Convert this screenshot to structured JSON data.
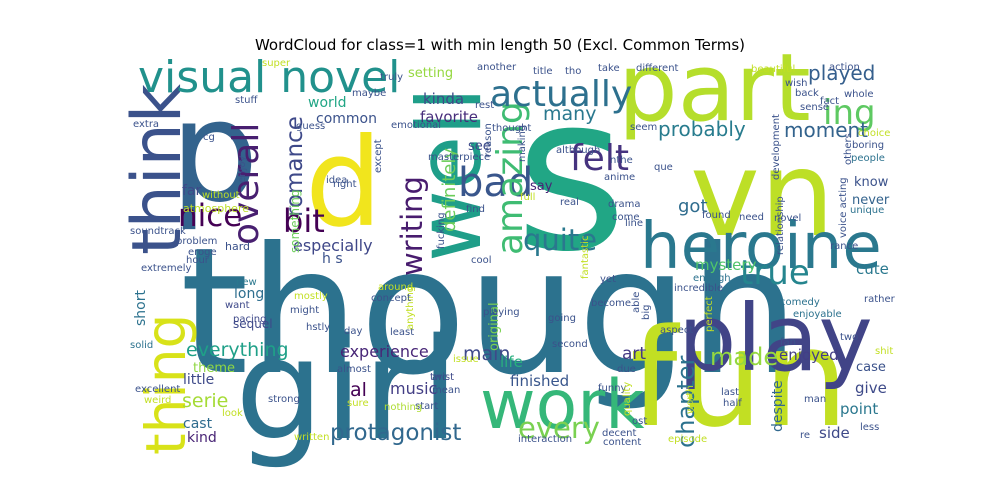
{
  "chart_data": {
    "type": "wordcloud",
    "title": "WordCloud for class=1 with min length 50 (Excl. Common Terms)",
    "words": [
      {
        "text": "though",
        "size": 1.0,
        "color": "#2c728e"
      },
      {
        "text": "s",
        "size": 0.98,
        "color": "#21a685"
      },
      {
        "text": "girl",
        "size": 0.78,
        "color": "#2c728e"
      },
      {
        "text": "fun",
        "size": 0.78,
        "color": "#c2df23"
      },
      {
        "text": "p",
        "size": 0.75,
        "color": "#33638d"
      },
      {
        "text": "d",
        "size": 0.68,
        "color": "#f1e51d"
      },
      {
        "text": "vn",
        "size": 0.66,
        "color": "#bddf26"
      },
      {
        "text": "part",
        "size": 0.52,
        "color": "#b5de2b"
      },
      {
        "text": "play",
        "size": 0.52,
        "color": "#414487"
      },
      {
        "text": "well",
        "size": 0.5,
        "color": "#1f9e89"
      },
      {
        "text": "think",
        "size": 0.4,
        "color": "#3b528b"
      },
      {
        "text": "work",
        "size": 0.4,
        "color": "#35b779"
      },
      {
        "text": "heroine",
        "size": 0.36,
        "color": "#2a788e"
      },
      {
        "text": "thing",
        "size": 0.32,
        "color": "#d8e219"
      },
      {
        "text": "visual novel",
        "size": 0.26,
        "color": "#21918c"
      },
      {
        "text": "bad",
        "size": 0.24,
        "color": "#39568c"
      },
      {
        "text": "amazing",
        "size": 0.21,
        "color": "#3fbc73"
      },
      {
        "text": "overall",
        "size": 0.21,
        "color": "#481f70"
      },
      {
        "text": "felt",
        "size": 0.2,
        "color": "#46337f"
      },
      {
        "text": "actually",
        "size": 0.2,
        "color": "#2d708e"
      },
      {
        "text": "true",
        "size": 0.2,
        "color": "#25858e"
      },
      {
        "text": "ing",
        "size": 0.2,
        "color": "#5ec962"
      },
      {
        "text": "nice",
        "size": 0.18,
        "color": "#440154"
      },
      {
        "text": "bit",
        "size": 0.19,
        "color": "#440154"
      },
      {
        "text": "quite",
        "size": 0.17,
        "color": "#2a788e"
      },
      {
        "text": "writing",
        "size": 0.17,
        "color": "#481c6e"
      },
      {
        "text": "every",
        "size": 0.17,
        "color": "#7ad151"
      },
      {
        "text": "protagonist",
        "size": 0.14,
        "color": "#31688e"
      },
      {
        "text": "romance",
        "size": 0.14,
        "color": "#3e4989"
      },
      {
        "text": "made",
        "size": 0.14,
        "color": "#95d840"
      },
      {
        "text": "chapter",
        "size": 0.14,
        "color": "#2c728e"
      },
      {
        "text": "played",
        "size": 0.12,
        "color": "#355f8d"
      },
      {
        "text": "probably",
        "size": 0.12,
        "color": "#287c8e"
      },
      {
        "text": "moment",
        "size": 0.12,
        "color": "#33638d"
      },
      {
        "text": "al",
        "size": 0.12,
        "color": "#440154"
      },
      {
        "text": "definitely",
        "size": 0.11,
        "color": "#6ccd5a"
      },
      {
        "text": "got",
        "size": 0.11,
        "color": "#2f6c8e"
      },
      {
        "text": "serie",
        "size": 0.11,
        "color": "#a5db36"
      },
      {
        "text": "everything",
        "size": 0.11,
        "color": "#1fa088"
      },
      {
        "text": "experience",
        "size": 0.1,
        "color": "#482677"
      },
      {
        "text": "main",
        "size": 0.1,
        "color": "#3e4989"
      },
      {
        "text": "especially",
        "size": 0.1,
        "color": "#3f4788"
      },
      {
        "text": "many",
        "size": 0.1,
        "color": "#2a788e"
      },
      {
        "text": "kinda",
        "size": 0.09,
        "color": "#3e4989"
      },
      {
        "text": "finished",
        "size": 0.09,
        "color": "#39568c"
      },
      {
        "text": "music",
        "size": 0.09,
        "color": "#433e85"
      },
      {
        "text": "enjoyed",
        "size": 0.09,
        "color": "#433e85"
      },
      {
        "text": "mystery",
        "size": 0.09,
        "color": "#50c46a"
      },
      {
        "text": "cute",
        "size": 0.09,
        "color": "#2a788e"
      },
      {
        "text": "world",
        "size": 0.09,
        "color": "#21a685"
      },
      {
        "text": "common",
        "size": 0.09,
        "color": "#3b528b"
      },
      {
        "text": "favorite",
        "size": 0.09,
        "color": "#472d7b"
      },
      {
        "text": "setting",
        "size": 0.09,
        "color": "#95d840"
      },
      {
        "text": "art",
        "size": 0.09,
        "color": "#443983"
      },
      {
        "text": "give",
        "size": 0.09,
        "color": "#3e4a89"
      },
      {
        "text": "point",
        "size": 0.09,
        "color": "#2a778e"
      },
      {
        "text": "side",
        "size": 0.09,
        "color": "#3e4989"
      },
      {
        "text": "kind",
        "size": 0.09,
        "color": "#482475"
      },
      {
        "text": "cast",
        "size": 0.09,
        "color": "#2f6c8e"
      },
      {
        "text": "long",
        "size": 0.09,
        "color": "#2e6e8e"
      },
      {
        "text": "life",
        "size": 0.08,
        "color": "#29af7f"
      },
      {
        "text": "little",
        "size": 0.08,
        "color": "#3e4a89"
      },
      {
        "text": "theme",
        "size": 0.08,
        "color": "#8fd744"
      },
      {
        "text": "short",
        "size": 0.08,
        "color": "#2c728e"
      },
      {
        "text": "sequel",
        "size": 0.07,
        "color": "#3e4989"
      },
      {
        "text": "despite",
        "size": 0.08,
        "color": "#31688e"
      },
      {
        "text": "case",
        "size": 0.08,
        "color": "#3b528b"
      },
      {
        "text": "know",
        "size": 0.08,
        "color": "#3b528b"
      },
      {
        "text": "never",
        "size": 0.08,
        "color": "#33638d"
      },
      {
        "text": "say",
        "size": 0.08,
        "color": "#482475"
      },
      {
        "text": "see",
        "size": 0.07,
        "color": "#3e4989"
      },
      {
        "text": "far",
        "size": 0.07,
        "color": "#3e4989"
      },
      {
        "text": "original",
        "size": 0.07,
        "color": "#7ad151"
      },
      {
        "text": "something",
        "size": 0.06,
        "color": "#6ccd5a"
      },
      {
        "text": "atmosphere",
        "size": 0.05,
        "color": "#bddf26"
      },
      {
        "text": "without",
        "size": 0.05,
        "color": "#bddf26"
      },
      {
        "text": "hard",
        "size": 0.05,
        "color": "#3b528b"
      },
      {
        "text": "new",
        "size": 0.05,
        "color": "#2a788e"
      },
      {
        "text": "want",
        "size": 0.05,
        "color": "#3e4989"
      },
      {
        "text": "pacing",
        "size": 0.05,
        "color": "#3e4989"
      },
      {
        "text": "solid",
        "size": 0.05,
        "color": "#2c728e"
      },
      {
        "text": "excellent",
        "size": 0.05,
        "color": "#3b528b"
      },
      {
        "text": "strong",
        "size": 0.05,
        "color": "#3b528b"
      },
      {
        "text": "might",
        "size": 0.05,
        "color": "#3b528b"
      },
      {
        "text": "day",
        "size": 0.05,
        "color": "#3b528b"
      },
      {
        "text": "least",
        "size": 0.05,
        "color": "#3b528b"
      },
      {
        "text": "start",
        "size": 0.05,
        "color": "#3b528b"
      },
      {
        "text": "nothing",
        "size": 0.05,
        "color": "#addc30"
      },
      {
        "text": "twist",
        "size": 0.05,
        "color": "#3e4989"
      },
      {
        "text": "going",
        "size": 0.05,
        "color": "#3b528b"
      },
      {
        "text": "funny",
        "size": 0.05,
        "color": "#3b528b"
      },
      {
        "text": "enough",
        "size": 0.05,
        "color": "#2c728e"
      },
      {
        "text": "comedy",
        "size": 0.05,
        "color": "#2c728e"
      },
      {
        "text": "enjoyable",
        "size": 0.05,
        "color": "#2c728e"
      },
      {
        "text": "fan",
        "size": 0.05,
        "color": "#3b528b"
      },
      {
        "text": "last",
        "size": 0.05,
        "color": "#3b528b"
      },
      {
        "text": "half",
        "size": 0.05,
        "color": "#3b528b"
      },
      {
        "text": "two",
        "size": 0.05,
        "color": "#3b528b"
      },
      {
        "text": "less",
        "size": 0.05,
        "color": "#3b528b"
      },
      {
        "text": "re",
        "size": 0.05,
        "color": "#3b528b"
      },
      {
        "text": "decent",
        "size": 0.05,
        "color": "#3b528b"
      },
      {
        "text": "ost",
        "size": 0.05,
        "color": "#3b528b"
      },
      {
        "text": "real",
        "size": 0.05,
        "color": "#3b528b"
      },
      {
        "text": "drama",
        "size": 0.05,
        "color": "#3b528b"
      },
      {
        "text": "come",
        "size": 0.05,
        "color": "#3b528b"
      },
      {
        "text": "yet",
        "size": 0.05,
        "color": "#3b528b"
      },
      {
        "text": "cool",
        "size": 0.05,
        "color": "#3b528b"
      },
      {
        "text": "find",
        "size": 0.05,
        "color": "#3b528b"
      },
      {
        "text": "playing",
        "size": 0.05,
        "color": "#3b528b"
      },
      {
        "text": "stuff",
        "size": 0.05,
        "color": "#3b528b"
      },
      {
        "text": "take",
        "size": 0.05,
        "color": "#3b528b"
      },
      {
        "text": "different",
        "size": 0.05,
        "color": "#3b528b"
      },
      {
        "text": "back",
        "size": 0.05,
        "color": "#3b528b"
      },
      {
        "text": "whole",
        "size": 0.05,
        "color": "#3b528b"
      },
      {
        "text": "people",
        "size": 0.05,
        "color": "#2c728e"
      },
      {
        "text": "unique",
        "size": 0.05,
        "color": "#2c728e"
      },
      {
        "text": "boring",
        "size": 0.05,
        "color": "#3b528b"
      },
      {
        "text": "hour",
        "size": 0.05,
        "color": "#3b528b"
      },
      {
        "text": "need",
        "size": 0.05,
        "color": "#3b528b"
      },
      {
        "text": "novel",
        "size": 0.05,
        "color": "#3b528b"
      },
      {
        "text": "although",
        "size": 0.05,
        "color": "#3b528b"
      },
      {
        "text": "idea",
        "size": 0.05,
        "color": "#3b528b"
      },
      {
        "text": "hstly",
        "size": 0.05,
        "color": "#3b528b"
      },
      {
        "text": "another",
        "size": 0.05,
        "color": "#3b528b"
      },
      {
        "text": "maybe",
        "size": 0.05,
        "color": "#3b528b"
      },
      {
        "text": "truly",
        "size": 0.05,
        "color": "#3b528b"
      },
      {
        "text": "title",
        "size": 0.05,
        "color": "#3b528b"
      },
      {
        "text": "thought",
        "size": 0.05,
        "color": "#3b528b"
      },
      {
        "text": "anime",
        "size": 0.05,
        "color": "#3b528b"
      },
      {
        "text": "wish",
        "size": 0.05,
        "color": "#3b528b"
      },
      {
        "text": "beautiful",
        "size": 0.05,
        "color": "#c2df23"
      },
      {
        "text": "action",
        "size": 0.05,
        "color": "#3b528b"
      },
      {
        "text": "seem",
        "size": 0.05,
        "color": "#3b528b"
      },
      {
        "text": "nthe",
        "size": 0.05,
        "color": "#3b528b"
      },
      {
        "text": "emotional",
        "size": 0.05,
        "color": "#3b528b"
      },
      {
        "text": "rest",
        "size": 0.05,
        "color": "#3b528b"
      },
      {
        "text": "masterpiece",
        "size": 0.05,
        "color": "#3b528b"
      },
      {
        "text": "guess",
        "size": 0.05,
        "color": "#3b528b"
      },
      {
        "text": "except",
        "size": 0.05,
        "color": "#3b528b"
      },
      {
        "text": "making",
        "size": 0.05,
        "color": "#3b528b"
      },
      {
        "text": "fantastic",
        "size": 0.05,
        "color": "#c2df23"
      },
      {
        "text": "mostly",
        "size": 0.05,
        "color": "#c2df23"
      },
      {
        "text": "anything",
        "size": 0.05,
        "color": "#c2df23"
      },
      {
        "text": "fucking",
        "size": 0.05,
        "color": "#3b528b"
      },
      {
        "text": "second",
        "size": 0.05,
        "color": "#3b528b"
      },
      {
        "text": "issue",
        "size": 0.05,
        "color": "#c2df23"
      },
      {
        "text": "almost",
        "size": 0.05,
        "color": "#3b528b"
      },
      {
        "text": "arc",
        "size": 0.05,
        "color": "#3b528b"
      },
      {
        "text": "sure",
        "size": 0.05,
        "color": "#c2df23"
      },
      {
        "text": "mean",
        "size": 0.05,
        "color": "#3b528b"
      },
      {
        "text": "interaction",
        "size": 0.05,
        "color": "#3b528b"
      },
      {
        "text": "content",
        "size": 0.05,
        "color": "#3b528b"
      },
      {
        "text": "episode",
        "size": 0.05,
        "color": "#c2df23"
      },
      {
        "text": "written",
        "size": 0.05,
        "color": "#c2df23"
      },
      {
        "text": "weird",
        "size": 0.05,
        "color": "#c2df23"
      },
      {
        "text": "look",
        "size": 0.05,
        "color": "#c2df23"
      },
      {
        "text": "aspect",
        "size": 0.05,
        "color": "#3b528b"
      },
      {
        "text": "man",
        "size": 0.05,
        "color": "#3b528b"
      },
      {
        "text": "shit",
        "size": 0.05,
        "color": "#c2df23"
      },
      {
        "text": "rather",
        "size": 0.05,
        "color": "#3b528b"
      },
      {
        "text": "rance",
        "size": 0.05,
        "color": "#3b528b"
      },
      {
        "text": "incredible",
        "size": 0.05,
        "color": "#3b528b"
      },
      {
        "text": "perfect",
        "size": 0.05,
        "color": "#c2df23"
      },
      {
        "text": "relationship",
        "size": 0.05,
        "color": "#3b528b"
      },
      {
        "text": "development",
        "size": 0.05,
        "color": "#3b528b"
      },
      {
        "text": "voice acting",
        "size": 0.05,
        "color": "#3b528b"
      },
      {
        "text": "others",
        "size": 0.05,
        "color": "#3b528b"
      },
      {
        "text": "choice",
        "size": 0.05,
        "color": "#c2df23"
      },
      {
        "text": "sense",
        "size": 0.05,
        "color": "#3b528b"
      },
      {
        "text": "fact",
        "size": 0.05,
        "color": "#3b528b"
      },
      {
        "text": "extra",
        "size": 0.05,
        "color": "#3b528b"
      },
      {
        "text": "cg",
        "size": 0.05,
        "color": "#3b528b"
      },
      {
        "text": "super",
        "size": 0.05,
        "color": "#c2df23"
      },
      {
        "text": "enjoy",
        "size": 0.05,
        "color": "#3b528b"
      },
      {
        "text": "right",
        "size": 0.05,
        "color": "#3b528b"
      },
      {
        "text": "soundtrack",
        "size": 0.05,
        "color": "#3b528b"
      },
      {
        "text": "problem",
        "size": 0.05,
        "color": "#3b528b"
      },
      {
        "text": "eroge",
        "size": 0.05,
        "color": "#3b528b"
      },
      {
        "text": "extremely",
        "size": 0.05,
        "color": "#3b528b"
      },
      {
        "text": "around",
        "size": 0.05,
        "color": "#c2df23"
      },
      {
        "text": "concept",
        "size": 0.05,
        "color": "#3b528b"
      },
      {
        "text": "become",
        "size": 0.05,
        "color": "#3b528b"
      },
      {
        "text": "line",
        "size": 0.05,
        "color": "#3b528b"
      },
      {
        "text": "found",
        "size": 0.05,
        "color": "#3b528b"
      },
      {
        "text": "full",
        "size": 0.05,
        "color": "#c2df23"
      },
      {
        "text": "tho",
        "size": 0.05,
        "color": "#3b528b"
      },
      {
        "text": "reason",
        "size": 0.05,
        "color": "#3b528b"
      },
      {
        "text": "que",
        "size": 0.05,
        "color": "#3b528b"
      },
      {
        "text": "quality",
        "size": 0.05,
        "color": "#c2df23"
      },
      {
        "text": "due",
        "size": 0.05,
        "color": "#3b528b"
      },
      {
        "text": "worth",
        "size": 0.05,
        "color": "#c2df23"
      },
      {
        "text": "able",
        "size": 0.05,
        "color": "#3b528b"
      },
      {
        "text": "big",
        "size": 0.05,
        "color": "#3b528b"
      },
      {
        "text": "h s",
        "size": 0.1,
        "color": "#3b528b"
      }
    ]
  }
}
